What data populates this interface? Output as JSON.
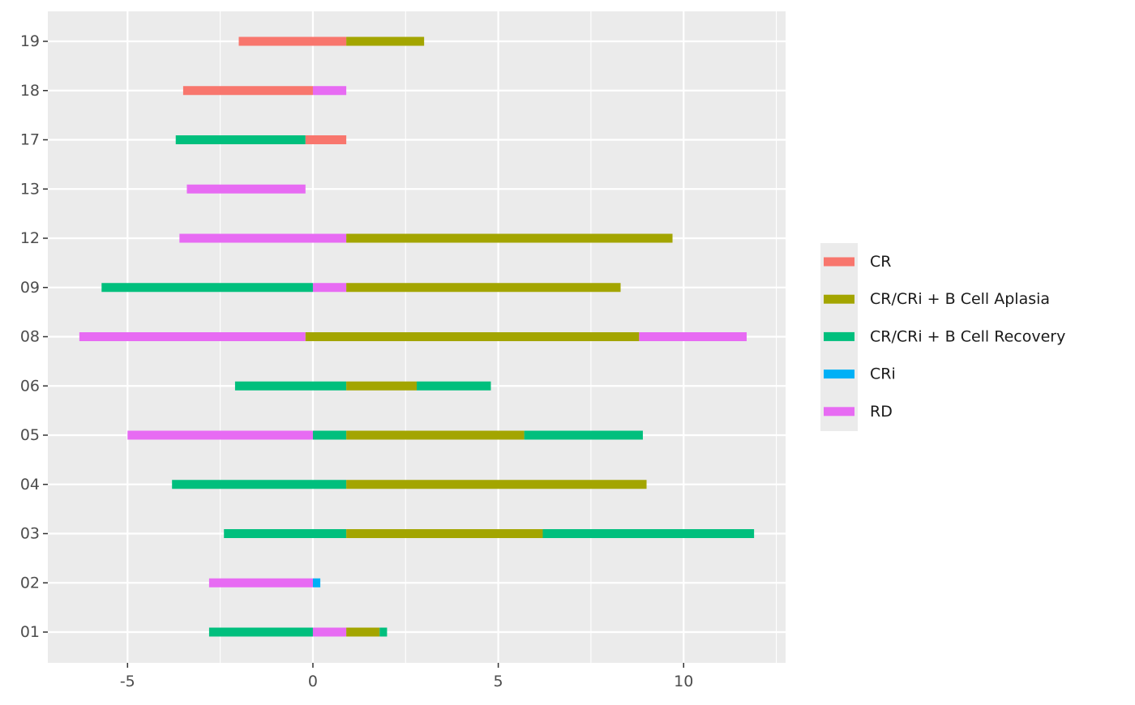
{
  "chart_data": {
    "type": "bar",
    "orientation": "horizontal-timeline",
    "title": "",
    "xlabel": "",
    "ylabel": "",
    "xlim": [
      -7.15,
      12.75
    ],
    "x_ticks": [
      -5,
      0,
      5,
      10
    ],
    "x_tick_labels": [
      "-5",
      "0",
      "5",
      "10"
    ],
    "categories": [
      "01",
      "02",
      "03",
      "04",
      "05",
      "06",
      "08",
      "09",
      "12",
      "13",
      "17",
      "18",
      "19"
    ],
    "grid": true,
    "legend": {
      "position": "right",
      "entries": [
        {
          "name": "CR",
          "color": "#F8766D"
        },
        {
          "name": "CR/CRi + B Cell Aplasia",
          "color": "#A3A500"
        },
        {
          "name": "CR/CRi + B Cell Recovery",
          "color": "#00BF7D"
        },
        {
          "name": "CRi",
          "color": "#00B0F6"
        },
        {
          "name": "RD",
          "color": "#E76BF3"
        }
      ]
    },
    "segments": [
      {
        "category": "01",
        "start": -2.8,
        "end": 0,
        "response": "CR/CRi + B Cell Recovery"
      },
      {
        "category": "01",
        "start": 0,
        "end": 0.9,
        "response": "RD"
      },
      {
        "category": "01",
        "start": 0.9,
        "end": 1.8,
        "response": "CR/CRi + B Cell Aplasia"
      },
      {
        "category": "01",
        "start": 1.8,
        "end": 2.0,
        "response": "CR/CRi + B Cell Recovery"
      },
      {
        "category": "02",
        "start": -2.8,
        "end": 0,
        "response": "RD"
      },
      {
        "category": "02",
        "start": 0,
        "end": 0.2,
        "response": "CRi"
      },
      {
        "category": "03",
        "start": -2.4,
        "end": 0.9,
        "response": "CR/CRi + B Cell Recovery"
      },
      {
        "category": "03",
        "start": 0.9,
        "end": 6.2,
        "response": "CR/CRi + B Cell Aplasia"
      },
      {
        "category": "03",
        "start": 6.2,
        "end": 11.9,
        "response": "CR/CRi + B Cell Recovery"
      },
      {
        "category": "04",
        "start": -3.8,
        "end": 0.9,
        "response": "CR/CRi + B Cell Recovery"
      },
      {
        "category": "04",
        "start": 0.9,
        "end": 9.0,
        "response": "CR/CRi + B Cell Aplasia"
      },
      {
        "category": "05",
        "start": -5.0,
        "end": 0,
        "response": "RD"
      },
      {
        "category": "05",
        "start": 0,
        "end": 0.9,
        "response": "CR/CRi + B Cell Recovery"
      },
      {
        "category": "05",
        "start": 0.9,
        "end": 5.7,
        "response": "CR/CRi + B Cell Aplasia"
      },
      {
        "category": "05",
        "start": 5.7,
        "end": 8.9,
        "response": "CR/CRi + B Cell Recovery"
      },
      {
        "category": "06",
        "start": -2.1,
        "end": 0.9,
        "response": "CR/CRi + B Cell Recovery"
      },
      {
        "category": "06",
        "start": 0.9,
        "end": 2.8,
        "response": "CR/CRi + B Cell Aplasia"
      },
      {
        "category": "06",
        "start": 2.8,
        "end": 4.8,
        "response": "CR/CRi + B Cell Recovery"
      },
      {
        "category": "08",
        "start": -6.3,
        "end": -0.2,
        "response": "RD"
      },
      {
        "category": "08",
        "start": -0.2,
        "end": 8.8,
        "response": "CR/CRi + B Cell Aplasia"
      },
      {
        "category": "08",
        "start": 8.8,
        "end": 11.7,
        "response": "RD"
      },
      {
        "category": "09",
        "start": -5.7,
        "end": 0,
        "response": "CR/CRi + B Cell Recovery"
      },
      {
        "category": "09",
        "start": 0,
        "end": 0.9,
        "response": "RD"
      },
      {
        "category": "09",
        "start": 0.9,
        "end": 8.3,
        "response": "CR/CRi + B Cell Aplasia"
      },
      {
        "category": "12",
        "start": -3.6,
        "end": 0.9,
        "response": "RD"
      },
      {
        "category": "12",
        "start": 0.9,
        "end": 9.7,
        "response": "CR/CRi + B Cell Aplasia"
      },
      {
        "category": "13",
        "start": -3.4,
        "end": -0.2,
        "response": "RD"
      },
      {
        "category": "17",
        "start": -3.7,
        "end": -0.2,
        "response": "CR/CRi + B Cell Recovery"
      },
      {
        "category": "17",
        "start": -0.2,
        "end": 0.9,
        "response": "CR"
      },
      {
        "category": "18",
        "start": -3.5,
        "end": 0,
        "response": "CR"
      },
      {
        "category": "18",
        "start": 0,
        "end": 0.9,
        "response": "RD"
      },
      {
        "category": "19",
        "start": -2.0,
        "end": 0.9,
        "response": "CR"
      },
      {
        "category": "19",
        "start": 0.9,
        "end": 3.0,
        "response": "CR/CRi + B Cell Aplasia"
      }
    ]
  }
}
